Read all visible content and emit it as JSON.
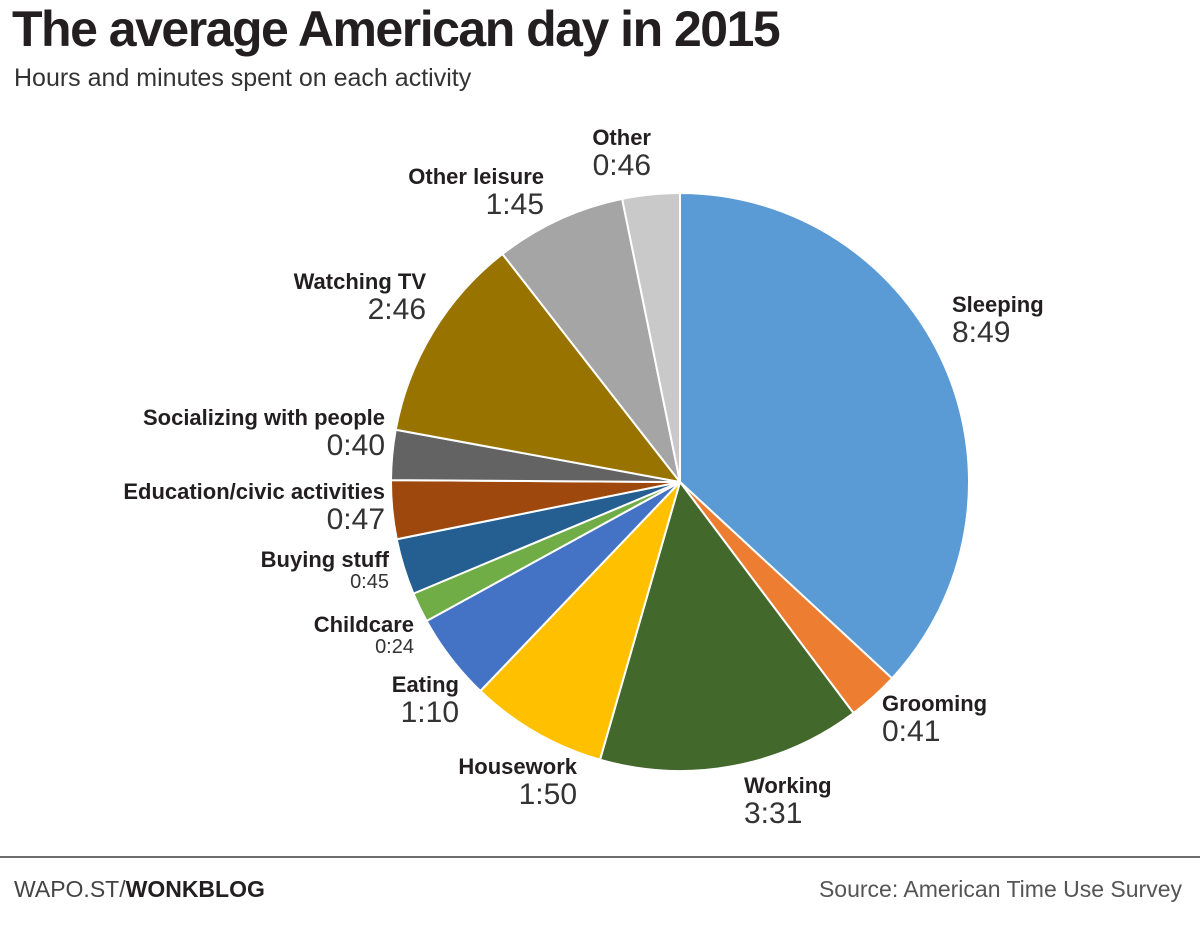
{
  "title": "The average American day in 2015",
  "subtitle": "Hours and minutes spent on each activity",
  "footer": {
    "site_prefix": "WAPO.ST/",
    "site_bold": "WONKBLOG",
    "source": "Source: American Time Use Survey"
  },
  "chart_data": {
    "type": "pie",
    "title": "The average American day in 2015",
    "subtitle": "Hours and minutes spent on each activity",
    "start_angle": "12 o'clock",
    "direction": "clockwise",
    "unit": "minutes",
    "slices": [
      {
        "label": "Sleeping",
        "display": "8:49",
        "minutes": 529,
        "color": "#5b9bd5"
      },
      {
        "label": "Grooming",
        "display": "0:41",
        "minutes": 41,
        "color": "#ed7d31"
      },
      {
        "label": "Working",
        "display": "3:31",
        "minutes": 211,
        "color": "#43682b"
      },
      {
        "label": "Housework",
        "display": "1:50",
        "minutes": 110,
        "color": "#ffc000"
      },
      {
        "label": "Eating",
        "display": "1:10",
        "minutes": 70,
        "color": "#4472c4"
      },
      {
        "label": "Childcare",
        "display": "0:24",
        "minutes": 24,
        "color": "#70ad47"
      },
      {
        "label": "Buying stuff",
        "display": "0:45",
        "minutes": 45,
        "color": "#255e91"
      },
      {
        "label": "Education/civic activities",
        "display": "0:47",
        "minutes": 47,
        "color": "#9e480e"
      },
      {
        "label": "Socializing with people",
        "display": "0:40",
        "minutes": 40,
        "color": "#636363"
      },
      {
        "label": "Watching TV",
        "display": "2:46",
        "minutes": 166,
        "color": "#997300"
      },
      {
        "label": "Other leisure",
        "display": "1:45",
        "minutes": 105,
        "color": "#a5a5a5"
      },
      {
        "label": "Other",
        "display": "0:46",
        "minutes": 46,
        "color": "#c9c9c9"
      }
    ]
  }
}
